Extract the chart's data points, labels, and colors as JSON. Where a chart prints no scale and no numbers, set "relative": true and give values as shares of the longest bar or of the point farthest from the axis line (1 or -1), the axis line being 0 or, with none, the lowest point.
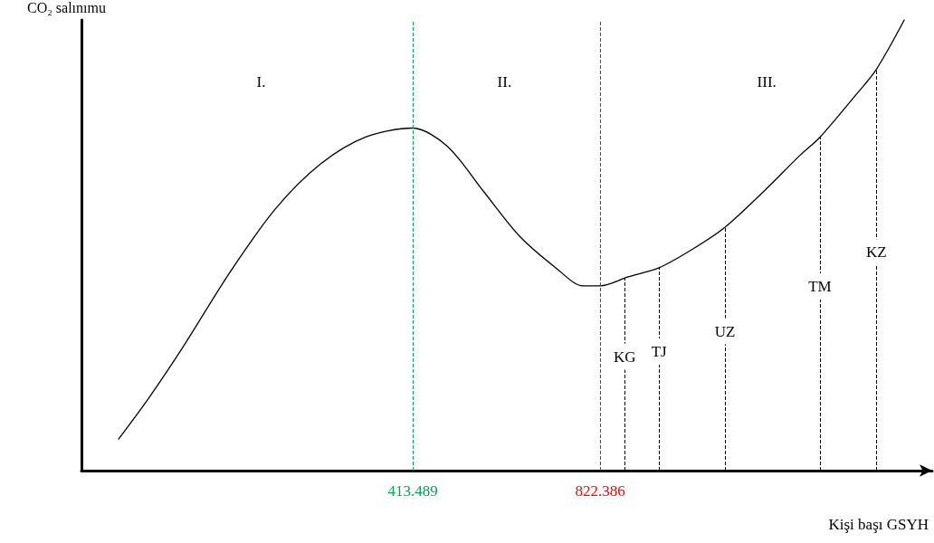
{
  "chart_data": {
    "type": "line",
    "relative": true,
    "xlabel": "Kişi başı GSYH",
    "ylabel": "CO₂ salınımu",
    "xlim": [
      -309.5,
      1547
    ],
    "xticks": [
      413.489,
      822.386
    ],
    "series": [
      {
        "color": "#000000",
        "x": [
          -228.5,
          -163.3,
          -84.3,
          14.5,
          113.2,
          212.0,
          310.8,
          413.489,
          488.6,
          567.6,
          646.6,
          725.6,
          784.9,
          822.386,
          883.6,
          950.8,
          1021.9,
          1095.0,
          1180.0,
          1259.0,
          1302.4,
          1377.5,
          1424.9,
          1486.1
        ],
        "values": [
          0.07,
          0.16,
          0.28,
          0.44,
          0.58,
          0.68,
          0.74,
          0.76,
          0.72,
          0.62,
          0.52,
          0.45,
          0.41,
          0.41,
          0.43,
          0.45,
          0.49,
          0.54,
          0.62,
          0.7,
          0.74,
          0.83,
          0.89,
          1.0
        ]
      }
    ],
    "ref_lines": [
      {
        "axis": "x",
        "value": 413.489,
        "label": null,
        "color": "#00a651",
        "line_style": "dashed"
      },
      {
        "axis": "x",
        "value": 822.386,
        "label": null,
        "color": "#ff0000",
        "line_style": "dashed"
      },
      {
        "axis": "x",
        "value": 876,
        "label": "KG",
        "color": "#000000",
        "line_style": "dashed"
      },
      {
        "axis": "x",
        "value": 951,
        "label": "TJ",
        "color": "#000000",
        "line_style": "dashed"
      },
      {
        "axis": "x",
        "value": 1095,
        "label": "UZ",
        "color": "#000000",
        "line_style": "dashed"
      },
      {
        "axis": "x",
        "value": 1302,
        "label": "TM",
        "color": "#000000",
        "line_style": "dashed"
      },
      {
        "axis": "x",
        "value": 1425,
        "label": "KZ",
        "color": "#000000",
        "line_style": "dashed"
      }
    ],
    "annotations": [
      "I.",
      "II.",
      "III."
    ],
    "marker": "none",
    "line_style": "solid",
    "grid": false
  }
}
